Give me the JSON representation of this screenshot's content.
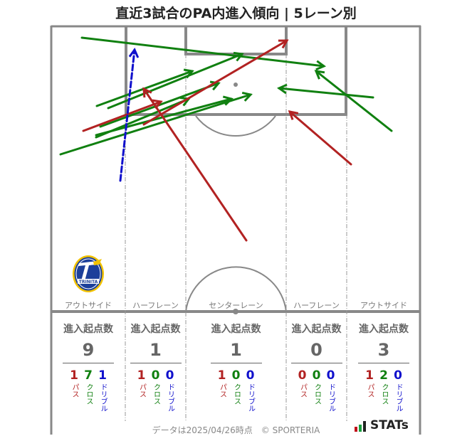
{
  "title": "直近3試合のPA内進入傾向 | 5レーン別",
  "colors": {
    "pass": "#b22222",
    "cross": "#108010",
    "dribble": "#1010cc",
    "pitch_line": "#888888"
  },
  "lanes": [
    {
      "label": "アウトサイド",
      "stats_header": "進入起点数",
      "total": "9",
      "pass": "1",
      "cross": "7",
      "dribble": "1"
    },
    {
      "label": "ハーフレーン",
      "stats_header": "進入起点数",
      "total": "1",
      "pass": "1",
      "cross": "0",
      "dribble": "0"
    },
    {
      "label": "センターレーン",
      "stats_header": "進入起点数",
      "total": "1",
      "pass": "1",
      "cross": "0",
      "dribble": "0"
    },
    {
      "label": "ハーフレーン",
      "stats_header": "進入起点数",
      "total": "0",
      "pass": "0",
      "cross": "0",
      "dribble": "0"
    },
    {
      "label": "アウトサイド",
      "stats_header": "進入起点数",
      "total": "3",
      "pass": "1",
      "cross": "2",
      "dribble": "0"
    }
  ],
  "type_labels": {
    "pass": "パス",
    "cross": "クロス",
    "dribble": "ドリブル"
  },
  "arrows": [
    {
      "type": "cross",
      "from": [
        115,
        53
      ],
      "to": [
        455,
        93
      ]
    },
    {
      "type": "cross",
      "from": [
        136,
        149
      ],
      "to": [
        270,
        100
      ]
    },
    {
      "type": "cross",
      "from": [
        152,
        152
      ],
      "to": [
        340,
        76
      ]
    },
    {
      "type": "cross",
      "from": [
        141,
        178
      ],
      "to": [
        307,
        117
      ]
    },
    {
      "type": "cross",
      "from": [
        135,
        193
      ],
      "to": [
        265,
        139
      ]
    },
    {
      "type": "cross",
      "from": [
        135,
        190
      ],
      "to": [
        325,
        139
      ]
    },
    {
      "type": "cross",
      "from": [
        85,
        217
      ],
      "to": [
        352,
        133
      ]
    },
    {
      "type": "cross",
      "from": [
        524,
        137
      ],
      "to": [
        392,
        124
      ]
    },
    {
      "type": "cross",
      "from": [
        550,
        184
      ],
      "to": [
        444,
        100
      ]
    },
    {
      "type": "pass",
      "from": [
        117,
        184
      ],
      "to": [
        226,
        143
      ]
    },
    {
      "type": "pass",
      "from": [
        202,
        175
      ],
      "to": [
        403,
        57
      ]
    },
    {
      "type": "pass",
      "from": [
        346,
        338
      ],
      "to": [
        202,
        125
      ]
    },
    {
      "type": "pass",
      "from": [
        493,
        231
      ],
      "to": [
        407,
        157
      ]
    },
    {
      "type": "dribble",
      "from": [
        169,
        254
      ],
      "to": [
        189,
        70
      ]
    }
  ],
  "footer": "データは2025/04/26時点　© SPORTERIA",
  "brand": "STATs",
  "crest_text": "TRINITA"
}
